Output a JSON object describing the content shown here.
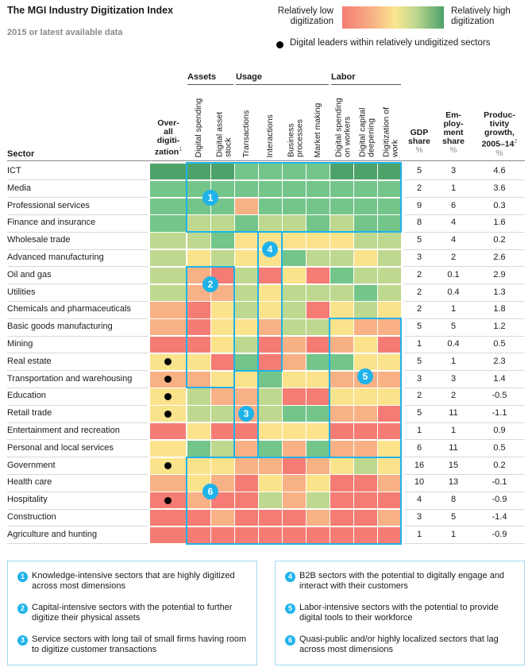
{
  "title": "The MGI Industry Digitization Index",
  "subtitle": "2015 or latest available data",
  "legend": {
    "low_label_line1": "Relatively low",
    "low_label_line2": "digitization",
    "high_label_line1": "Relatively high",
    "high_label_line2": "digitization",
    "dot_label": "Digital leaders within relatively undigitized sectors",
    "scale_colors": [
      "#f47c74",
      "#f8b185",
      "#fbe38c",
      "#bfd88f",
      "#74c58a",
      "#4da26a"
    ]
  },
  "headers": {
    "sector": "Sector",
    "overall_line1": "Over-",
    "overall_line2": "all",
    "overall_line3": "digiti-",
    "overall_line4": "zation",
    "overall_footnote": "1",
    "groups": [
      "Assets",
      "Usage",
      "Labor"
    ],
    "gdp_line1": "GDP",
    "gdp_line2": "share",
    "emp_line1": "Em-",
    "emp_line2": "ploy-",
    "emp_line3": "ment",
    "emp_line4": "share",
    "prod_line1": "Produc-",
    "prod_line2": "tivity",
    "prod_line3": "growth,",
    "prod_line4": "2005–14",
    "prod_footnote": "2",
    "unit": "%"
  },
  "chart_data": {
    "type": "heatmap",
    "title": "The MGI Industry Digitization Index",
    "subtitle": "2015 or latest available data",
    "scale": "0 = relatively low digitization ... 5 = relatively high digitization",
    "column_groups": [
      {
        "name": "Assets",
        "columns": [
          "Digital spending",
          "Digital asset stock"
        ]
      },
      {
        "name": "Usage",
        "columns": [
          "Transactions",
          "Interactions",
          "Business processes",
          "Market making"
        ]
      },
      {
        "name": "Labor",
        "columns": [
          "Digital spending on workers",
          "Digital capital deepening",
          "Digitization of work"
        ]
      }
    ],
    "columns": [
      [
        "Digital spending"
      ],
      [
        "Digital asset",
        "stock"
      ],
      [
        "Transactions"
      ],
      [
        "Interactions"
      ],
      [
        "Business",
        "processes"
      ],
      [
        "Market making"
      ],
      [
        "Digital spending",
        "on workers"
      ],
      [
        "Digital capital",
        "deepening"
      ],
      [
        "Digitization of",
        "work"
      ]
    ],
    "rows": [
      {
        "sector": "ICT",
        "overall": 5,
        "cells": [
          5,
          5,
          4,
          4,
          4,
          4,
          5,
          5,
          5
        ],
        "leader": false,
        "gdp": "5",
        "emp": "3",
        "prod": "4.6"
      },
      {
        "sector": "Media",
        "overall": 4,
        "cells": [
          4,
          4,
          4,
          4,
          4,
          4,
          4,
          4,
          4
        ],
        "leader": false,
        "gdp": "2",
        "emp": "1",
        "prod": "3.6"
      },
      {
        "sector": "Professional services",
        "overall": 4,
        "cells": [
          4,
          4,
          1,
          4,
          4,
          4,
          4,
          4,
          4
        ],
        "leader": false,
        "gdp": "9",
        "emp": "6",
        "prod": "0.3"
      },
      {
        "sector": "Finance and insurance",
        "overall": 4,
        "cells": [
          3,
          3,
          4,
          3,
          3,
          4,
          3,
          4,
          4
        ],
        "leader": false,
        "gdp": "8",
        "emp": "4",
        "prod": "1.6"
      },
      {
        "sector": "Wholesale trade",
        "overall": 3,
        "cells": [
          3,
          4,
          2,
          2,
          2,
          2,
          2,
          3,
          3
        ],
        "leader": false,
        "gdp": "5",
        "emp": "4",
        "prod": "0.2"
      },
      {
        "sector": "Advanced manufacturing",
        "overall": 3,
        "cells": [
          2,
          3,
          2,
          2,
          4,
          3,
          3,
          2,
          3
        ],
        "leader": false,
        "gdp": "3",
        "emp": "2",
        "prod": "2.6"
      },
      {
        "sector": "Oil and gas",
        "overall": 3,
        "cells": [
          1,
          0,
          3,
          0,
          2,
          0,
          4,
          3,
          3
        ],
        "leader": false,
        "gdp": "2",
        "emp": "0.1",
        "prod": "2.9"
      },
      {
        "sector": "Utilities",
        "overall": 3,
        "cells": [
          1,
          1,
          3,
          2,
          3,
          3,
          3,
          4,
          3
        ],
        "leader": false,
        "gdp": "2",
        "emp": "0.4",
        "prod": "1.3"
      },
      {
        "sector": "Chemicals and pharmaceuticals",
        "overall": 1,
        "cells": [
          0,
          2,
          3,
          2,
          3,
          0,
          2,
          3,
          2
        ],
        "leader": false,
        "gdp": "2",
        "emp": "1",
        "prod": "1.8"
      },
      {
        "sector": "Basic goods manufacturing",
        "overall": 1,
        "cells": [
          0,
          2,
          2,
          1,
          3,
          3,
          2,
          1,
          1
        ],
        "leader": false,
        "gdp": "5",
        "emp": "5",
        "prod": "1.2"
      },
      {
        "sector": "Mining",
        "overall": 0,
        "cells": [
          0,
          2,
          3,
          0,
          1,
          0,
          1,
          2,
          0
        ],
        "leader": false,
        "gdp": "1",
        "emp": "0.4",
        "prod": "0.5"
      },
      {
        "sector": "Real estate",
        "overall": 2,
        "cells": [
          2,
          0,
          4,
          0,
          1,
          4,
          4,
          2,
          2
        ],
        "leader": true,
        "gdp": "5",
        "emp": "1",
        "prod": "2.3"
      },
      {
        "sector": "Transportation and warehousing",
        "overall": 1,
        "cells": [
          1,
          2,
          2,
          4,
          2,
          2,
          1,
          1,
          1
        ],
        "leader": true,
        "gdp": "3",
        "emp": "3",
        "prod": "1.4"
      },
      {
        "sector": "Education",
        "overall": 2,
        "cells": [
          3,
          1,
          1,
          3,
          0,
          0,
          2,
          2,
          2
        ],
        "leader": true,
        "gdp": "2",
        "emp": "2",
        "prod": "-0.5"
      },
      {
        "sector": "Retail trade",
        "overall": 2,
        "cells": [
          3,
          3,
          1,
          3,
          4,
          4,
          1,
          1,
          0
        ],
        "leader": true,
        "gdp": "5",
        "emp": "11",
        "prod": "-1.1"
      },
      {
        "sector": "Entertainment and recreation",
        "overall": 0,
        "cells": [
          2,
          0,
          0,
          2,
          2,
          2,
          0,
          0,
          0
        ],
        "leader": false,
        "gdp": "1",
        "emp": "1",
        "prod": "0.9"
      },
      {
        "sector": "Personal and local services",
        "overall": 2,
        "cells": [
          4,
          3,
          1,
          4,
          1,
          4,
          1,
          1,
          2
        ],
        "leader": false,
        "gdp": "6",
        "emp": "11",
        "prod": "0.5"
      },
      {
        "sector": "Government",
        "overall": 2,
        "cells": [
          2,
          2,
          1,
          1,
          0,
          1,
          2,
          3,
          2
        ],
        "leader": true,
        "gdp": "16",
        "emp": "15",
        "prod": "0.2"
      },
      {
        "sector": "Health care",
        "overall": 1,
        "cells": [
          2,
          1,
          0,
          2,
          1,
          2,
          0,
          0,
          1
        ],
        "leader": false,
        "gdp": "10",
        "emp": "13",
        "prod": "-0.1"
      },
      {
        "sector": "Hospitality",
        "overall": 0,
        "cells": [
          1,
          0,
          0,
          3,
          1,
          3,
          0,
          0,
          0
        ],
        "leader": true,
        "gdp": "4",
        "emp": "8",
        "prod": "-0.9"
      },
      {
        "sector": "Construction",
        "overall": 0,
        "cells": [
          0,
          1,
          0,
          0,
          0,
          1,
          0,
          0,
          1
        ],
        "leader": false,
        "gdp": "3",
        "emp": "5",
        "prod": "-1.4"
      },
      {
        "sector": "Agriculture and hunting",
        "overall": 0,
        "cells": [
          0,
          0,
          0,
          0,
          0,
          0,
          0,
          0,
          0
        ],
        "leader": false,
        "gdp": "1",
        "emp": "1",
        "prod": "-0.9"
      }
    ],
    "clusters": [
      {
        "id": "1",
        "rows": [
          0,
          3
        ],
        "cols": [
          0,
          8
        ]
      },
      {
        "id": "2",
        "rows": [
          6,
          12
        ],
        "cols": [
          0,
          1
        ]
      },
      {
        "id": "3",
        "rows": [
          12,
          16
        ],
        "cols": [
          2,
          2
        ]
      },
      {
        "id": "4",
        "rows": [
          4,
          11
        ],
        "cols": [
          3,
          3
        ]
      },
      {
        "id": "5",
        "rows": [
          9,
          16
        ],
        "cols": [
          6,
          8
        ]
      },
      {
        "id": "6",
        "rows": [
          17,
          21
        ],
        "cols": [
          0,
          8
        ]
      }
    ]
  },
  "notes": [
    {
      "id": "1",
      "text": "Knowledge-intensive sectors that are highly digitized across most dimensions"
    },
    {
      "id": "2",
      "text": "Capital-intensive sectors with the potential to further digitize their physical assets"
    },
    {
      "id": "3",
      "text": "Service sectors with long tail of small firms having room to digitize customer transactions"
    },
    {
      "id": "4",
      "text": "B2B sectors with the potential to digitally engage and interact with their customers"
    },
    {
      "id": "5",
      "text": "Labor-intensive sectors with the potential to provide digital tools to their workforce"
    },
    {
      "id": "6",
      "text": "Quasi-public and/or highly localized sectors that lag across most dimensions"
    }
  ]
}
